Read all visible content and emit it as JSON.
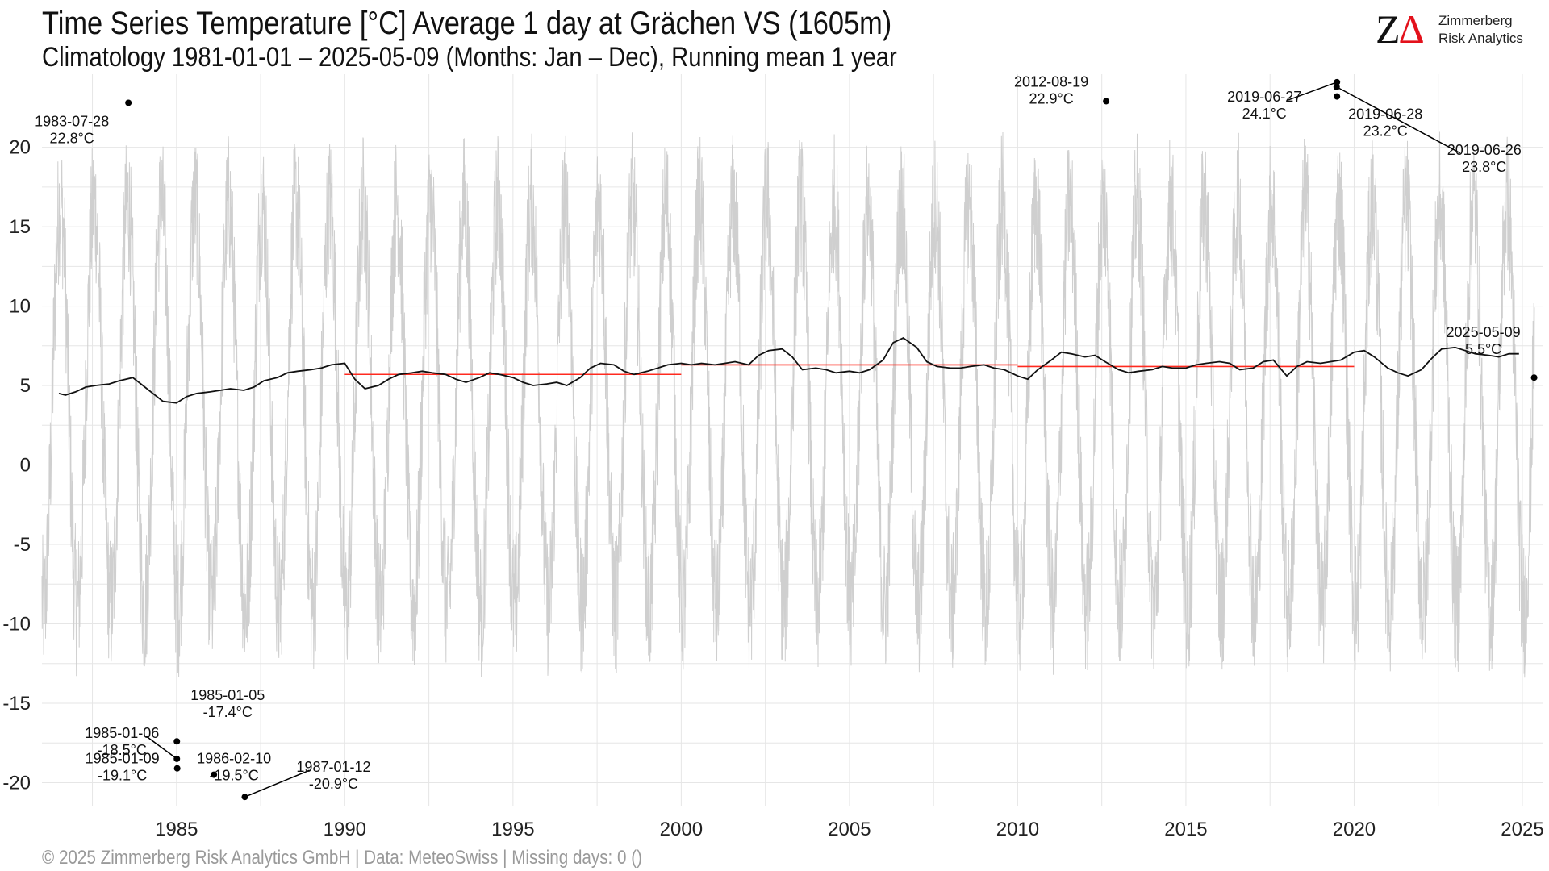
{
  "chart_data": {
    "type": "line",
    "title": "Time Series Temperature [°C] Average 1 day at Grächen  VS (1605m)",
    "subtitle": "Climatology 1981-01-01 – 2025-05-09 (Months: Jan – Dec), Running mean 1 year",
    "xlabel": "",
    "ylabel": "",
    "xlim": [
      1981.0,
      2025.6
    ],
    "ylim": [
      -21.5,
      24.6
    ],
    "x_ticks": [
      1985,
      1990,
      1995,
      2000,
      2005,
      2010,
      2015,
      2020,
      2025
    ],
    "y_ticks": [
      -20,
      -15,
      -10,
      -5,
      0,
      5,
      10,
      15,
      20
    ],
    "grid": true,
    "legend": "none",
    "colors": {
      "daily": "#cfcfcf",
      "running_mean": "#111111",
      "period_mean": "#ff2a1f",
      "grid": "#e6e6e6"
    },
    "series": [
      {
        "role": "daily",
        "daily_range": {
          "summer_peak_typical": 16.5,
          "winter_trough_typical": -9.0
        }
      },
      {
        "role": "running_mean",
        "x": [
          1981.5,
          1981.7,
          1982.0,
          1982.3,
          1982.6,
          1983.0,
          1983.3,
          1983.7,
          1984.0,
          1984.3,
          1984.6,
          1985.0,
          1985.3,
          1985.6,
          1986.0,
          1986.3,
          1986.6,
          1987.0,
          1987.3,
          1987.6,
          1988.0,
          1988.3,
          1988.6,
          1989.0,
          1989.3,
          1989.6,
          1990.0,
          1990.3,
          1990.6,
          1991.0,
          1991.3,
          1991.6,
          1992.0,
          1992.3,
          1992.6,
          1993.0,
          1993.3,
          1993.6,
          1994.0,
          1994.3,
          1994.6,
          1995.0,
          1995.3,
          1995.6,
          1996.0,
          1996.3,
          1996.6,
          1997.0,
          1997.3,
          1997.6,
          1998.0,
          1998.3,
          1998.6,
          1999.0,
          1999.3,
          1999.6,
          2000.0,
          2000.3,
          2000.6,
          2001.0,
          2001.3,
          2001.6,
          2002.0,
          2002.3,
          2002.6,
          2003.0,
          2003.3,
          2003.6,
          2004.0,
          2004.3,
          2004.6,
          2005.0,
          2005.3,
          2005.6,
          2006.0,
          2006.3,
          2006.6,
          2007.0,
          2007.3,
          2007.6,
          2008.0,
          2008.3,
          2008.6,
          2009.0,
          2009.3,
          2009.6,
          2010.0,
          2010.3,
          2010.6,
          2011.0,
          2011.3,
          2011.6,
          2012.0,
          2012.3,
          2012.6,
          2013.0,
          2013.3,
          2013.6,
          2014.0,
          2014.3,
          2014.6,
          2015.0,
          2015.3,
          2015.6,
          2016.0,
          2016.3,
          2016.6,
          2017.0,
          2017.3,
          2017.6,
          2018.0,
          2018.3,
          2018.6,
          2019.0,
          2019.3,
          2019.6,
          2020.0,
          2020.3,
          2020.6,
          2021.0,
          2021.3,
          2021.6,
          2022.0,
          2022.3,
          2022.6,
          2023.0,
          2023.3,
          2023.6,
          2024.0,
          2024.3,
          2024.6,
          2024.9
        ],
        "y": [
          4.5,
          4.4,
          4.6,
          4.9,
          5.0,
          5.1,
          5.3,
          5.5,
          5.0,
          4.5,
          4.0,
          3.9,
          4.3,
          4.5,
          4.6,
          4.7,
          4.8,
          4.7,
          4.9,
          5.3,
          5.5,
          5.8,
          5.9,
          6.0,
          6.1,
          6.3,
          6.4,
          5.4,
          4.8,
          5.0,
          5.4,
          5.7,
          5.8,
          5.9,
          5.8,
          5.7,
          5.4,
          5.2,
          5.5,
          5.8,
          5.7,
          5.5,
          5.2,
          5.0,
          5.1,
          5.2,
          5.0,
          5.5,
          6.1,
          6.4,
          6.3,
          5.9,
          5.7,
          5.9,
          6.1,
          6.3,
          6.4,
          6.3,
          6.4,
          6.3,
          6.4,
          6.5,
          6.3,
          6.9,
          7.2,
          7.3,
          6.8,
          6.0,
          6.1,
          6.0,
          5.8,
          5.9,
          5.8,
          6.0,
          6.6,
          7.7,
          8.0,
          7.4,
          6.5,
          6.2,
          6.1,
          6.1,
          6.2,
          6.3,
          6.1,
          6.0,
          5.6,
          5.4,
          6.0,
          6.6,
          7.1,
          7.0,
          6.8,
          6.9,
          6.5,
          6.0,
          5.8,
          5.9,
          6.0,
          6.2,
          6.1,
          6.1,
          6.3,
          6.4,
          6.5,
          6.4,
          6.0,
          6.1,
          6.5,
          6.6,
          5.6,
          6.2,
          6.5,
          6.4,
          6.5,
          6.6,
          7.1,
          7.2,
          6.8,
          6.1,
          5.8,
          5.6,
          6.0,
          6.7,
          7.3,
          7.4,
          7.2,
          7.0,
          6.9,
          6.8,
          7.0,
          7.0
        ]
      },
      {
        "role": "period_mean",
        "segments": [
          {
            "x": [
              1990.0,
              2000.0
            ],
            "y": 5.7
          },
          {
            "x": [
              2000.0,
              2010.0
            ],
            "y": 6.3
          },
          {
            "x": [
              2010.0,
              2020.0
            ],
            "y": 6.2
          }
        ]
      }
    ],
    "annotations": [
      {
        "date": "1983-07-28",
        "x": 1983.57,
        "value": 22.8,
        "label": "22.8°C"
      },
      {
        "date": "2012-08-19",
        "x": 2012.63,
        "value": 22.9,
        "label": "22.9°C"
      },
      {
        "date": "2019-06-27",
        "x": 2019.49,
        "value": 24.1,
        "label": "24.1°C"
      },
      {
        "date": "2019-06-28",
        "x": 2019.49,
        "value": 23.2,
        "label": "23.2°C"
      },
      {
        "date": "2019-06-26",
        "x": 2019.48,
        "value": 23.8,
        "label": "23.8°C"
      },
      {
        "date": "2025-05-09",
        "x": 2025.35,
        "value": 5.5,
        "label": "5.5°C"
      },
      {
        "date": "1985-01-06",
        "x": 1985.01,
        "value": -18.5,
        "label": "-18.5°C"
      },
      {
        "date": "1985-01-05",
        "x": 1985.01,
        "value": -17.4,
        "label": "-17.4°C"
      },
      {
        "date": "1985-01-09",
        "x": 1985.02,
        "value": -19.1,
        "label": "-19.1°C"
      },
      {
        "date": "1986-02-10",
        "x": 1986.11,
        "value": -19.5,
        "label": "-19.5°C"
      },
      {
        "date": "1987-01-12",
        "x": 1987.03,
        "value": -20.9,
        "label": "-20.9°C"
      }
    ]
  },
  "logo": {
    "mark_z": "Z",
    "mark_delta": "Δ",
    "line1": "Zimmerberg",
    "line2": "Risk Analytics"
  },
  "footer": "©  2025 Zimmerberg Risk Analytics GmbH | Data: MeteoSwiss | Missing days: 0 ()"
}
